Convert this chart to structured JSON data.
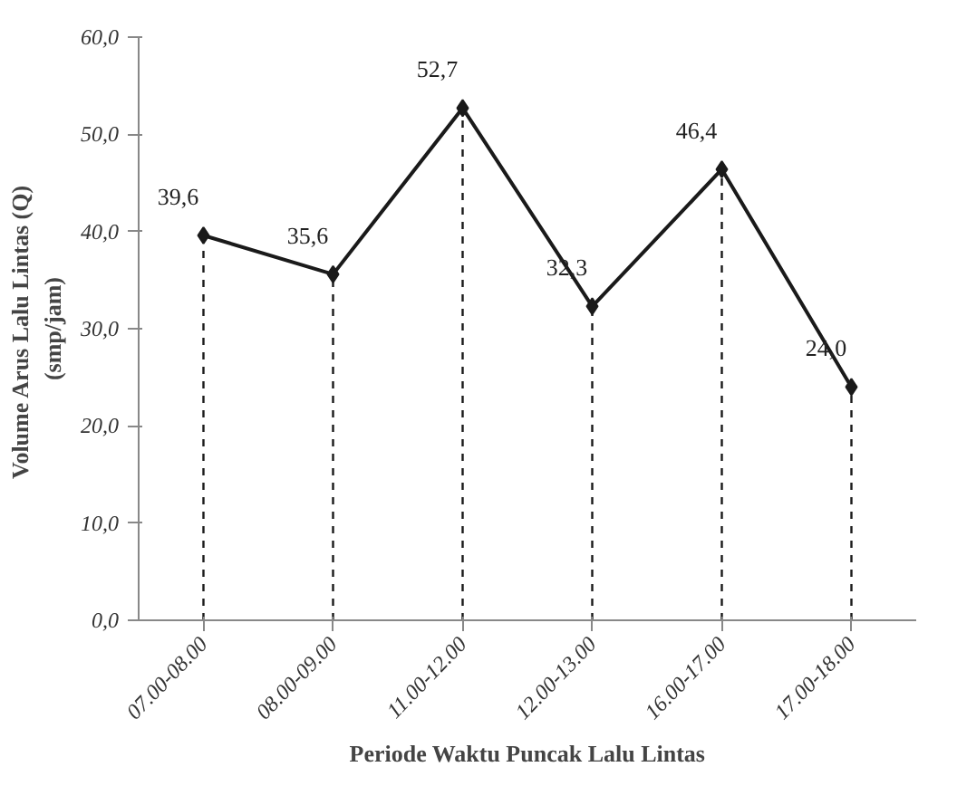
{
  "chart_data": {
    "type": "line",
    "xlabel": "Periode Waktu Puncak Lalu Lintas",
    "ylabel": "Volume  Arus Lalu Lintas (Q)\n(smp/jam)",
    "categories": [
      "07.00-08.00",
      "08.00-09.00",
      "11.00-12.00",
      "12.00-13.00",
      "16.00-17.00",
      "17.00-18.00"
    ],
    "series": [
      {
        "color": "#1a1a1a",
        "values": [
          39.6,
          35.6,
          52.7,
          32.3,
          46.4,
          24.0
        ],
        "value_labels": [
          "39,6",
          "35,6",
          "52,7",
          "32,3",
          "46,4",
          "24,0"
        ]
      },
      {
        "type": "lollipop",
        "color": "#1a1a1a",
        "line_style": "dashed",
        "marker": "diamond",
        "values": [
          39.6,
          35.6,
          52.7,
          32.3,
          46.4,
          24.0
        ]
      }
    ],
    "ylim": [
      0,
      60
    ],
    "yticks": [
      {
        "value": 0,
        "label": "0,0"
      },
      {
        "value": 10,
        "label": "10,0"
      },
      {
        "value": 20,
        "label": "20,0"
      },
      {
        "value": 30,
        "label": "30,0"
      },
      {
        "value": 40,
        "label": "40,0"
      },
      {
        "value": 50,
        "label": "50,0"
      },
      {
        "value": 60,
        "label": "60,0"
      }
    ],
    "line_style": "solid",
    "grid": false
  }
}
